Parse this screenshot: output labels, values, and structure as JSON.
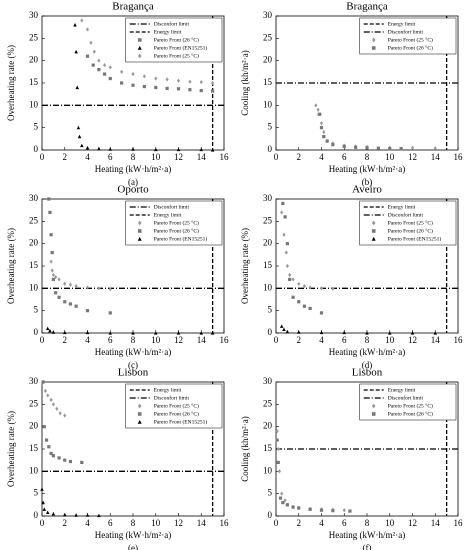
{
  "chart_data": [
    {
      "type": "scatter",
      "title": "Bragança",
      "panel_label": "(a)",
      "x_label": "Heating (kW·h/m²·a)",
      "y_label": "Overheating rate (%)",
      "xlim": [
        0,
        16
      ],
      "ylim": [
        0,
        30
      ],
      "xticks": [
        0,
        2,
        4,
        6,
        8,
        10,
        12,
        14,
        16
      ],
      "yticks": [
        0,
        5,
        10,
        15,
        20,
        25,
        30
      ],
      "legend_position": "upper right",
      "series": [
        {
          "name": "Disconfort limit",
          "kind": "hline",
          "value": 10,
          "color": "#000000"
        },
        {
          "name": "Energy limit",
          "kind": "vline",
          "value": 15,
          "color": "#000000"
        },
        {
          "name": "Pareto Front (26 °C)",
          "marker": "square",
          "color": "#777777",
          "x": [
            4,
            4.5,
            5,
            5.5,
            6,
            7,
            8,
            9,
            10,
            11,
            12,
            13,
            14,
            15
          ],
          "y": [
            21,
            19,
            18,
            17,
            16,
            15,
            14.5,
            14.2,
            14,
            13.8,
            13.7,
            13.5,
            13.3,
            13.2
          ]
        },
        {
          "name": "Pareto Front (EN15251)",
          "marker": "triangle",
          "color": "#000000",
          "x": [
            2.9,
            3,
            3.1,
            3.2,
            3.3,
            3.5,
            4,
            5,
            6,
            8,
            10,
            12,
            14,
            15
          ],
          "y": [
            28,
            22,
            14,
            5,
            3,
            1,
            0.5,
            0.3,
            0.2,
            0.2,
            0.1,
            0.1,
            0.1,
            0
          ]
        },
        {
          "name": "Pareto Front (25 °C)",
          "marker": "diamond",
          "color": "#999999",
          "x": [
            3.5,
            4,
            4.3,
            4.6,
            5,
            5.5,
            6,
            7,
            8,
            9,
            10,
            11,
            12,
            13,
            14,
            15
          ],
          "y": [
            29,
            27,
            24,
            22,
            20,
            19,
            18.5,
            17.5,
            17,
            16.5,
            16,
            15.8,
            15.5,
            15.3,
            15.2,
            15
          ]
        }
      ]
    },
    {
      "type": "scatter",
      "title": "Bragança",
      "panel_label": "(b)",
      "x_label": "Heating (kW·h/m²·a)",
      "y_label": "Cooling (kh/m²·a)",
      "xlim": [
        0,
        16
      ],
      "ylim": [
        0,
        30
      ],
      "xticks": [
        0,
        2,
        4,
        6,
        8,
        10,
        12,
        14,
        16
      ],
      "yticks": [
        0,
        5,
        10,
        15,
        20,
        25,
        30
      ],
      "legend_position": "upper right",
      "series": [
        {
          "name": "Energy limit",
          "kind": "vline",
          "value": 15,
          "color": "#000000"
        },
        {
          "name": "Disconfort limit",
          "kind": "hline",
          "value": 15,
          "color": "#000000"
        },
        {
          "name": "Pareto Front (25 °C)",
          "marker": "diamond",
          "color": "#999999",
          "x": [
            3.5,
            3.7,
            3.9,
            4,
            4.2,
            4.5,
            5,
            6,
            7,
            8,
            10,
            12,
            14
          ],
          "y": [
            10,
            9,
            8,
            6,
            4,
            2,
            1.5,
            1,
            0.8,
            0.7,
            0.5,
            0.5,
            0.4
          ]
        },
        {
          "name": "Pareto Front (26 °C)",
          "marker": "square",
          "color": "#777777",
          "x": [
            3.8,
            4,
            4.2,
            4.5,
            5,
            6,
            7,
            8,
            9,
            10,
            11
          ],
          "y": [
            8,
            5,
            3,
            2,
            1.2,
            0.8,
            0.6,
            0.5,
            0.4,
            0.3,
            0.3
          ]
        }
      ]
    },
    {
      "type": "scatter",
      "title": "Oporto",
      "panel_label": "(c)",
      "x_label": "Heating (kW·h/m²·a)",
      "y_label": "Overheating rate (%)",
      "xlim": [
        0,
        16
      ],
      "ylim": [
        0,
        30
      ],
      "xticks": [
        0,
        2,
        4,
        6,
        8,
        10,
        12,
        14,
        16
      ],
      "yticks": [
        0,
        5,
        10,
        15,
        20,
        25,
        30
      ],
      "legend_position": "upper right",
      "series": [
        {
          "name": "Disconfort limit",
          "kind": "hline",
          "value": 10,
          "color": "#000000"
        },
        {
          "name": "Energy limit",
          "kind": "vline",
          "value": 15,
          "color": "#000000"
        },
        {
          "name": "Pareto Front (25 °C)",
          "marker": "diamond",
          "color": "#999999",
          "x": [
            0.8,
            0.9,
            1,
            1.2,
            1.5,
            2,
            2.5,
            3,
            4,
            5,
            6
          ],
          "y": [
            16,
            14,
            13,
            12.5,
            12,
            11,
            10.8,
            10.5,
            10.2,
            10,
            9.8
          ]
        },
        {
          "name": "Pareto Front (26 °C)",
          "marker": "square",
          "color": "#777777",
          "x": [
            0.6,
            0.7,
            0.8,
            0.9,
            1,
            1.2,
            1.5,
            2,
            2.5,
            3,
            4,
            6
          ],
          "y": [
            30,
            27,
            22,
            18,
            12,
            9,
            8,
            7,
            6.5,
            6,
            5,
            4.5
          ]
        },
        {
          "name": "Pareto Front (EN15251)",
          "marker": "triangle",
          "color": "#000000",
          "x": [
            0.5,
            0.7,
            1,
            2,
            4,
            6,
            8,
            10,
            12,
            14,
            15
          ],
          "y": [
            1,
            0.5,
            0.2,
            0.1,
            0.1,
            0,
            0,
            0,
            0,
            0,
            0
          ]
        }
      ]
    },
    {
      "type": "scatter",
      "title": "Aveiro",
      "panel_label": "(d)",
      "x_label": "Heating (kW·h/m²·a)",
      "y_label": "Overheating rate (%)",
      "xlim": [
        0,
        16
      ],
      "ylim": [
        0,
        30
      ],
      "xticks": [
        0,
        2,
        4,
        6,
        8,
        10,
        12,
        14,
        16
      ],
      "yticks": [
        0,
        5,
        10,
        15,
        20,
        25,
        30
      ],
      "legend_position": "upper right",
      "series": [
        {
          "name": "Energy limit",
          "kind": "vline",
          "value": 15,
          "color": "#000000"
        },
        {
          "name": "Disconfort limit",
          "kind": "hline",
          "value": 10,
          "color": "#000000"
        },
        {
          "name": "Pareto Front (25 °C)",
          "marker": "diamond",
          "color": "#999999",
          "x": [
            0.5,
            0.7,
            0.9,
            1,
            1.2,
            1.5,
            2,
            2.5,
            3,
            4,
            5
          ],
          "y": [
            27,
            22,
            18,
            15,
            13,
            12,
            11,
            10.5,
            10.2,
            10,
            9.9
          ]
        },
        {
          "name": "Pareto Front (26 °C)",
          "marker": "square",
          "color": "#777777",
          "x": [
            0.6,
            0.8,
            1,
            1.2,
            1.5,
            2,
            2.5,
            3,
            4
          ],
          "y": [
            29,
            26,
            20,
            12,
            8,
            7,
            6,
            5.5,
            4.5
          ]
        },
        {
          "name": "Pareto Front (EN15251)",
          "marker": "triangle",
          "color": "#000000",
          "x": [
            0.5,
            0.7,
            1,
            2,
            4,
            6,
            8,
            10,
            12,
            14
          ],
          "y": [
            1.5,
            0.8,
            0.3,
            0.2,
            0.1,
            0.1,
            0,
            0,
            0,
            0
          ]
        }
      ]
    },
    {
      "type": "scatter",
      "title": "Lisbon",
      "panel_label": "(e)",
      "x_label": "Heating (kW·h/m²·a)",
      "y_label": "Overheating rate (%)",
      "xlim": [
        0,
        16
      ],
      "ylim": [
        0,
        30
      ],
      "xticks": [
        0,
        2,
        4,
        6,
        8,
        10,
        12,
        14,
        16
      ],
      "yticks": [
        0,
        5,
        10,
        15,
        20,
        25,
        30
      ],
      "legend_position": "upper right",
      "series": [
        {
          "name": "Energy limit",
          "kind": "vline",
          "value": 15,
          "color": "#000000"
        },
        {
          "name": "Disconfort limit",
          "kind": "hline",
          "value": 10,
          "color": "#000000"
        },
        {
          "name": "Pareto Front (25 °C)",
          "marker": "diamond",
          "color": "#999999",
          "x": [
            0.1,
            0.3,
            0.5,
            0.8,
            1,
            1.3,
            1.6,
            2
          ],
          "y": [
            30,
            28,
            27,
            26,
            25,
            24,
            23,
            22.5
          ]
        },
        {
          "name": "Pareto Front (26 °C)",
          "marker": "square",
          "color": "#777777",
          "x": [
            0.1,
            0.2,
            0.4,
            0.6,
            0.8,
            1,
            1.5,
            2,
            2.5,
            3.5
          ],
          "y": [
            30,
            20,
            17,
            15.5,
            14,
            13.5,
            13,
            12.5,
            12.2,
            12
          ]
        },
        {
          "name": "Pareto Front (EN15251)",
          "marker": "triangle",
          "color": "#000000",
          "x": [
            0,
            0.1,
            0.2,
            0.5,
            1,
            2,
            3,
            4,
            5
          ],
          "y": [
            6,
            3,
            1.5,
            0.8,
            0.5,
            0.3,
            0.2,
            0.2,
            0.1
          ]
        }
      ]
    },
    {
      "type": "scatter",
      "title": "Lisbon",
      "panel_label": "(f)",
      "x_label": "Heating (kW·h/m²·a)",
      "y_label": "Cooling (kh/m²·a)",
      "xlim": [
        0,
        16
      ],
      "ylim": [
        0,
        30
      ],
      "xticks": [
        0,
        2,
        4,
        6,
        8,
        10,
        12,
        14,
        16
      ],
      "yticks": [
        0,
        5,
        10,
        15,
        20,
        25,
        30
      ],
      "legend_position": "upper right",
      "series": [
        {
          "name": "Energy limit",
          "kind": "vline",
          "value": 15,
          "color": "#000000"
        },
        {
          "name": "Disconfort limit",
          "kind": "hline",
          "value": 15,
          "color": "#000000"
        },
        {
          "name": "Pareto Front (25 °C)",
          "marker": "diamond",
          "color": "#999999",
          "x": [
            0.1,
            0.2,
            0.3,
            0.5,
            0.8,
            1,
            1.5,
            2,
            3,
            4,
            5,
            6
          ],
          "y": [
            19,
            15,
            10,
            5,
            3.5,
            2.5,
            2,
            1.8,
            1.6,
            1.5,
            1.4,
            1.3
          ]
        },
        {
          "name": "Pareto Front (26 °C)",
          "marker": "square",
          "color": "#777777",
          "x": [
            0.1,
            0.2,
            0.4,
            0.6,
            1,
            1.5,
            2,
            3,
            4,
            5,
            6.5
          ],
          "y": [
            17,
            12,
            4,
            3,
            2.5,
            2,
            1.8,
            1.5,
            1.3,
            1.2,
            1.1
          ]
        }
      ]
    }
  ]
}
